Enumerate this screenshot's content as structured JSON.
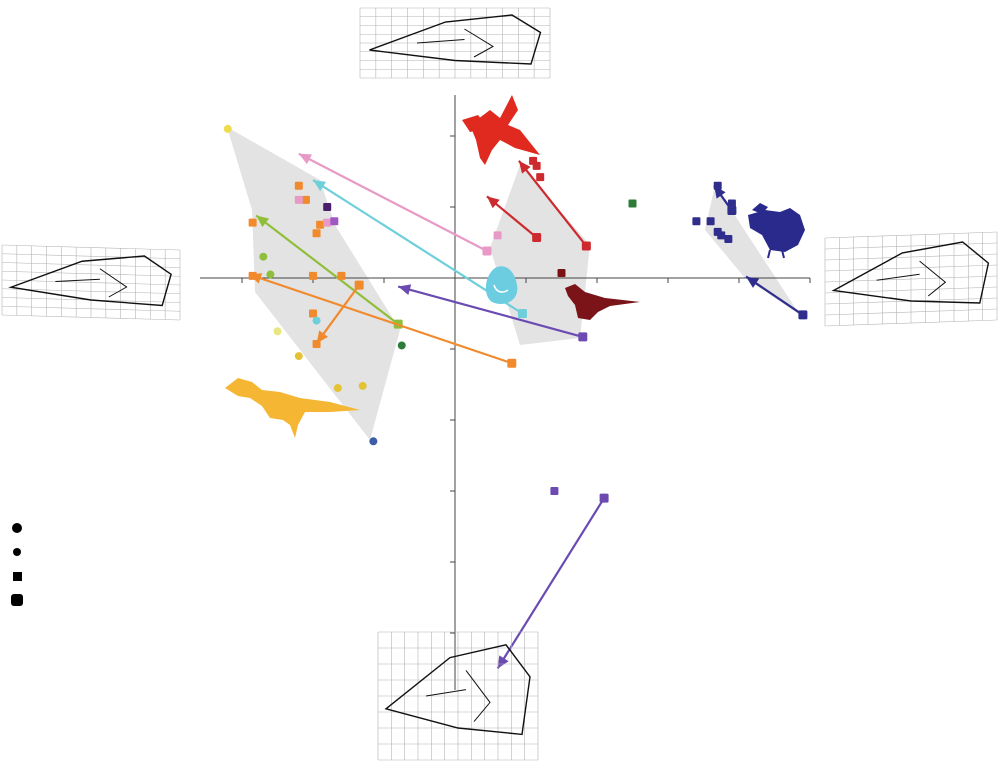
{
  "chart_data": {
    "type": "scatter",
    "title": "",
    "xlabel": "",
    "ylabel": "",
    "xlim": [
      -3.6,
      5.0
    ],
    "ylim": [
      -5.1,
      2.5
    ],
    "grid": false,
    "legend_position": "bottom-left",
    "colors": {
      "hull": "#e3e3e3",
      "axis": "#444444",
      "wireframe_grid": "#b4b4b4",
      "wireframe_outline": "#111111"
    },
    "series": [
      {
        "color": "#ecdd4e",
        "marker": "circle",
        "points": [
          [
            -3.2,
            2.1
          ]
        ]
      },
      {
        "color": "#8fbf3a",
        "marker": "circle",
        "points": [
          [
            -2.7,
            0.3
          ],
          [
            -2.6,
            0.05
          ]
        ]
      },
      {
        "color": "#e8e880",
        "marker": "circle",
        "points": [
          [
            -2.5,
            -0.75
          ]
        ]
      },
      {
        "color": "#e3c335",
        "marker": "circle",
        "points": [
          [
            -2.2,
            -1.1
          ],
          [
            -1.65,
            -1.55
          ],
          [
            -1.3,
            -1.52
          ]
        ]
      },
      {
        "color": "#f08a2d",
        "marker": "square",
        "points": [
          [
            -2.2,
            1.3
          ],
          [
            -2.1,
            1.1
          ],
          [
            -1.9,
            0.75
          ],
          [
            -1.95,
            0.63
          ],
          [
            -2.85,
            0.78
          ],
          [
            -2.85,
            0.03
          ],
          [
            -2.0,
            0.03
          ],
          [
            -1.6,
            0.03
          ],
          [
            -2.0,
            -0.5
          ],
          [
            -1.95,
            -0.93
          ]
        ]
      },
      {
        "color": "#e89ac6",
        "marker": "square",
        "points": [
          [
            -2.2,
            1.1
          ],
          [
            -1.8,
            0.78
          ],
          [
            0.6,
            0.6
          ]
        ]
      },
      {
        "color": "#4a1e6a",
        "marker": "square",
        "points": [
          [
            -1.8,
            1.0
          ]
        ]
      },
      {
        "color": "#9f58c3",
        "marker": "square",
        "points": [
          [
            -1.7,
            0.8
          ]
        ]
      },
      {
        "color": "#6ecfdb",
        "marker": "circle",
        "points": [
          [
            -1.95,
            -0.6
          ]
        ]
      },
      {
        "color": "#2d7c3a",
        "marker": "circle",
        "points": [
          [
            -0.75,
            -0.95
          ]
        ]
      },
      {
        "color": "#2d7c3a",
        "marker": "square",
        "points": [
          [
            2.5,
            1.05
          ]
        ]
      },
      {
        "color": "#3d5da8",
        "marker": "circle",
        "points": [
          [
            -1.15,
            -2.3
          ]
        ]
      },
      {
        "color": "#cc2a2e",
        "marker": "square",
        "points": [
          [
            1.1,
            1.65
          ],
          [
            1.2,
            1.42
          ],
          [
            1.15,
            1.58
          ]
        ]
      },
      {
        "color": "#7a1212",
        "marker": "square",
        "points": [
          [
            1.5,
            0.07
          ]
        ]
      },
      {
        "color": "#6b4bb1",
        "marker": "square",
        "points": [
          [
            1.4,
            -3.0
          ]
        ]
      },
      {
        "color": "#2f2e8c",
        "marker": "square",
        "points": [
          [
            3.7,
            1.3
          ],
          [
            3.9,
            1.05
          ],
          [
            3.4,
            0.8
          ],
          [
            3.6,
            0.8
          ],
          [
            3.7,
            0.65
          ],
          [
            3.85,
            0.55
          ],
          [
            3.75,
            0.6
          ]
        ]
      }
    ],
    "arrows": [
      {
        "color": "#e899c5",
        "from": [
          0.45,
          0.38
        ],
        "to": [
          -2.2,
          1.75
        ]
      },
      {
        "color": "#6ecfdb",
        "from": [
          0.95,
          -0.5
        ],
        "to": [
          -2.0,
          1.38
        ]
      },
      {
        "color": "#8fbf3a",
        "from": [
          -0.8,
          -0.65
        ],
        "to": [
          -2.8,
          0.88
        ]
      },
      {
        "color": "#f08a2d",
        "from": [
          0.8,
          -1.2
        ],
        "to": [
          -2.9,
          0.05
        ]
      },
      {
        "color": "#f08a2d",
        "from": [
          -1.35,
          -0.1
        ],
        "to": [
          -1.95,
          -0.92
        ]
      },
      {
        "color": "#6b4bb1",
        "from": [
          1.8,
          -0.83
        ],
        "to": [
          -0.8,
          -0.12
        ]
      },
      {
        "color": "#cc2a2e",
        "from": [
          1.15,
          0.57
        ],
        "to": [
          0.45,
          1.15
        ]
      },
      {
        "color": "#cc2a2e",
        "from": [
          1.85,
          0.45
        ],
        "to": [
          0.9,
          1.65
        ]
      },
      {
        "color": "#2f2e8c",
        "from": [
          4.9,
          -0.52
        ],
        "to": [
          4.1,
          0.02
        ]
      },
      {
        "color": "#2f2e8c",
        "from": [
          3.9,
          0.95
        ],
        "to": [
          3.65,
          1.3
        ]
      },
      {
        "color": "#6b4bb1",
        "from": [
          2.1,
          -3.1
        ],
        "to": [
          0.6,
          -5.5
        ]
      }
    ],
    "silhouettes": [
      {
        "name": "archaeopteryx-silhouette",
        "color": "#e02a1f"
      },
      {
        "name": "rooster-silhouette",
        "color": "#2a2a8c"
      },
      {
        "name": "small-theropod-silhouette",
        "color": "#7a1418"
      },
      {
        "name": "embryo-silhouette",
        "color": "#6ccde0"
      },
      {
        "name": "tyrannosaur-silhouette",
        "color": "#f4b633"
      }
    ],
    "legend": [
      {
        "symbol": "large-circle",
        "label": ""
      },
      {
        "symbol": "small-circle",
        "label": ""
      },
      {
        "symbol": "square",
        "label": ""
      },
      {
        "symbol": "large-square",
        "label": ""
      }
    ]
  }
}
